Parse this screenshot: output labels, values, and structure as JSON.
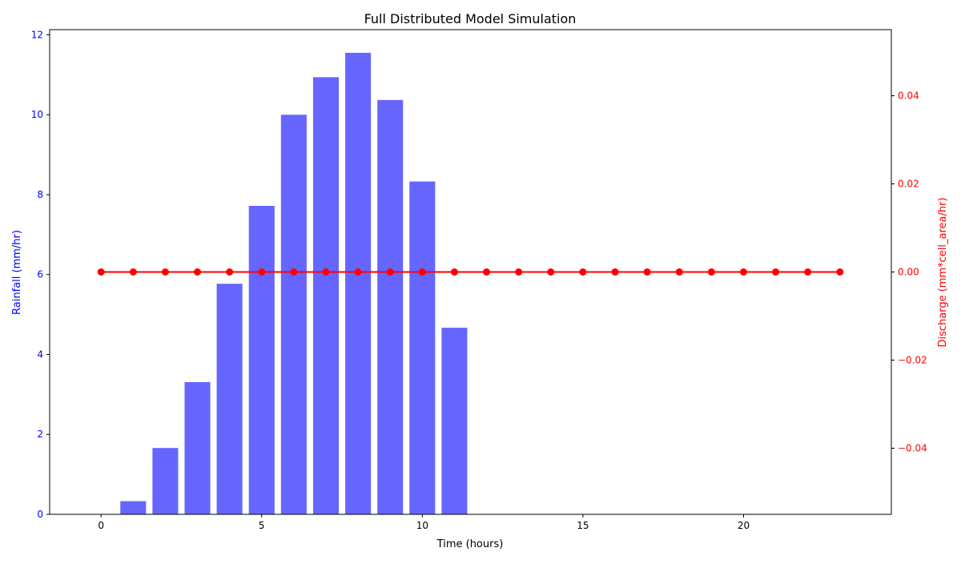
{
  "chart_data": {
    "type": "bar",
    "title": "Full Distributed Model Simulation",
    "xlabel": "Time (hours)",
    "x": [
      0,
      1,
      2,
      3,
      4,
      5,
      6,
      7,
      8,
      9,
      10,
      11,
      12,
      13,
      14,
      15,
      16,
      17,
      18,
      19,
      20,
      21,
      22,
      23
    ],
    "xlim": [
      -1.6,
      24.6
    ],
    "xticks": [
      0,
      5,
      10,
      15,
      20
    ],
    "grid": false,
    "series": [
      {
        "kind": "bar",
        "axis": "left",
        "color": "#6666ff",
        "values": [
          0,
          0.33,
          1.66,
          3.31,
          5.77,
          7.72,
          10.0,
          10.94,
          11.55,
          10.37,
          8.33,
          4.67,
          0,
          0,
          0,
          0,
          0,
          0,
          0,
          0,
          0,
          0,
          0,
          0
        ]
      },
      {
        "kind": "line",
        "axis": "right",
        "color": "#ff0000",
        "marker": "circle",
        "values": [
          0,
          0,
          0,
          0,
          0,
          0,
          0,
          0,
          0,
          0,
          0,
          0,
          0,
          0,
          0,
          0,
          0,
          0,
          0,
          0,
          0,
          0,
          0,
          0
        ]
      }
    ],
    "y_left": {
      "label": "Rainfall (mm/hr)",
      "color": "#0000ff",
      "ylim": [
        0,
        12.13
      ],
      "ticks": [
        0,
        2,
        4,
        6,
        8,
        10,
        12
      ]
    },
    "y_right": {
      "label": "Discharge (mm*cell_area/hr)",
      "color": "#ff0000",
      "ylim": [
        -0.055,
        0.055
      ],
      "ticks": [
        -0.04,
        -0.02,
        0.0,
        0.02,
        0.04
      ],
      "tick_labels": [
        "−0.04",
        "−0.02",
        "0.00",
        "0.02",
        "0.04"
      ]
    }
  }
}
